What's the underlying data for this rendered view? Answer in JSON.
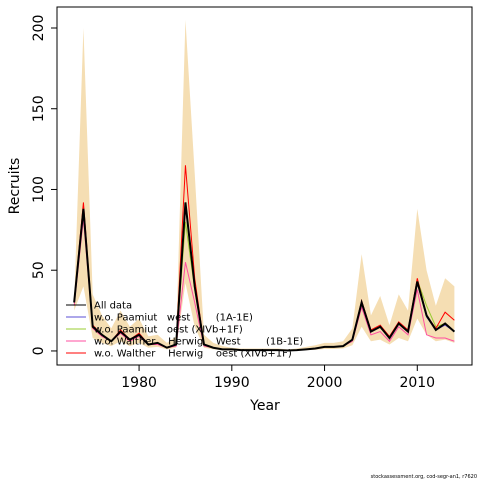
{
  "chart_data": {
    "type": "line",
    "x_label": "Year",
    "y_label": "Recruits",
    "footer": "stockassessment.org, cod-segr-an1, r7620",
    "x": [
      1973,
      1974,
      1975,
      1976,
      1977,
      1978,
      1979,
      1980,
      1981,
      1982,
      1983,
      1984,
      1985,
      1986,
      1987,
      1988,
      1989,
      1990,
      1991,
      1992,
      1993,
      1994,
      1995,
      1996,
      1997,
      1998,
      1999,
      2000,
      2001,
      2002,
      2003,
      2004,
      2005,
      2006,
      2007,
      2008,
      2009,
      2010,
      2011,
      2012,
      2013,
      2014
    ],
    "band": {
      "color": "#f5deb3",
      "upper": [
        30,
        200,
        35,
        22,
        14,
        25,
        15,
        20,
        9,
        10,
        5,
        9,
        205,
        110,
        10,
        5,
        3,
        2,
        1.5,
        1.5,
        1.5,
        1.5,
        1.5,
        1,
        1.5,
        2.5,
        3.5,
        5,
        5,
        6,
        14,
        60,
        22,
        34,
        16,
        35,
        25,
        88,
        50,
        28,
        45,
        40
      ],
      "lower": [
        25,
        40,
        8,
        5,
        3,
        6,
        3,
        5,
        2,
        2.5,
        1,
        2,
        42,
        15,
        2,
        1,
        0.5,
        0.2,
        0.2,
        0.2,
        0.2,
        0.2,
        0.2,
        0.2,
        0.2,
        0.5,
        0.7,
        1.2,
        1.2,
        1.5,
        3.5,
        15,
        6,
        7,
        4,
        8,
        6,
        20,
        10,
        6,
        7,
        5
      ]
    },
    "series": [
      {
        "name": "All data",
        "color": "#000000",
        "values": [
          30,
          88,
          15,
          10,
          6,
          12,
          7,
          10,
          4,
          5,
          2,
          4,
          92,
          40,
          4,
          2,
          1,
          1,
          0.5,
          0.5,
          0.5,
          0.5,
          0.5,
          0.3,
          0.5,
          1,
          1.5,
          2.5,
          2.5,
          3,
          7,
          30,
          12,
          15,
          8,
          17,
          12,
          43,
          22,
          13,
          17,
          12
        ]
      },
      {
        "name": "w.o. Paamiut   west        (1A-1E)",
        "color": "#5b4fd6",
        "values": [
          30,
          86,
          15,
          10,
          6,
          12,
          7,
          10,
          4,
          5,
          2,
          4,
          90,
          40,
          4,
          2,
          1,
          1,
          0.5,
          0.5,
          0.5,
          0.5,
          0.5,
          0.3,
          0.5,
          1,
          1.5,
          2.5,
          2.5,
          3,
          7,
          29,
          12,
          15,
          8,
          17,
          12,
          42,
          21,
          13,
          16,
          12
        ]
      },
      {
        "name": "w.o. Paamiut   oest (XIVb+1F)",
        "color": "#9acd32",
        "values": [
          30,
          85,
          15,
          10,
          6,
          12,
          7,
          10,
          4,
          5,
          2,
          4,
          80,
          38,
          4,
          2,
          1,
          1,
          0.5,
          0.5,
          0.5,
          0.5,
          0.5,
          0.3,
          0.5,
          1,
          1.5,
          2.5,
          2.5,
          3,
          7,
          30,
          12,
          15,
          8,
          17,
          12,
          44,
          28,
          15,
          17,
          12
        ]
      },
      {
        "name": "w.o. Walther    Herwig    West        (1B-1E)",
        "color": "#ff4fa0",
        "values": [
          28,
          82,
          14,
          9,
          6,
          11,
          6,
          9,
          4,
          4,
          2,
          3,
          55,
          30,
          3,
          2,
          1,
          1,
          0.5,
          0.5,
          0.5,
          0.5,
          0.5,
          0.3,
          0.5,
          1,
          1.5,
          2.5,
          2.5,
          3,
          6,
          27,
          10,
          12,
          6,
          15,
          10,
          38,
          10,
          8,
          8,
          6
        ]
      },
      {
        "name": "w.o. Walther    Herwig    oest (XIVb+1F)",
        "color": "#ff0000",
        "values": [
          31,
          92,
          16,
          10,
          6,
          13,
          7,
          11,
          4,
          5,
          2,
          4,
          115,
          45,
          4,
          2,
          1,
          1,
          0.5,
          0.5,
          0.5,
          0.5,
          0.5,
          0.3,
          0.5,
          1,
          1.5,
          2.5,
          2.5,
          3,
          7,
          31,
          13,
          16,
          9,
          18,
          13,
          45,
          22,
          14,
          24,
          19
        ]
      }
    ],
    "xlim": [
      1971.15,
      2015.9
    ],
    "ylim": [
      -8.7,
      213
    ],
    "xticks": [
      1980,
      1990,
      2000,
      2010
    ],
    "yticks": [
      0,
      50,
      100,
      150,
      200
    ]
  }
}
